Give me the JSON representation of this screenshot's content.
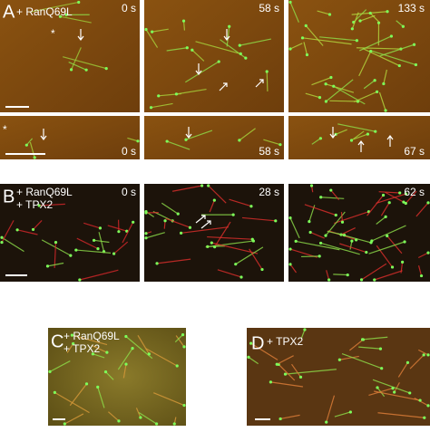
{
  "panels": [
    {
      "letter": "A",
      "conditions": [
        "+ RanQ69L"
      ],
      "frames": [
        {
          "time": "0 s",
          "marker": "*"
        },
        {
          "time": "58 s"
        },
        {
          "time": "133 s"
        }
      ],
      "zoom_frames": [
        {
          "time": "0 s",
          "marker": "*"
        },
        {
          "time": "58 s"
        },
        {
          "time": "67 s"
        }
      ]
    },
    {
      "letter": "B",
      "conditions": [
        "+ RanQ69L",
        "+ TPX2"
      ],
      "frames": [
        {
          "time": "0 s"
        },
        {
          "time": "28 s"
        },
        {
          "time": "62 s"
        }
      ]
    },
    {
      "letter": "C",
      "conditions": [
        "+ RanQ69L",
        "+ TPX2"
      ]
    },
    {
      "letter": "D",
      "conditions": [
        "+ TPX2"
      ]
    }
  ]
}
